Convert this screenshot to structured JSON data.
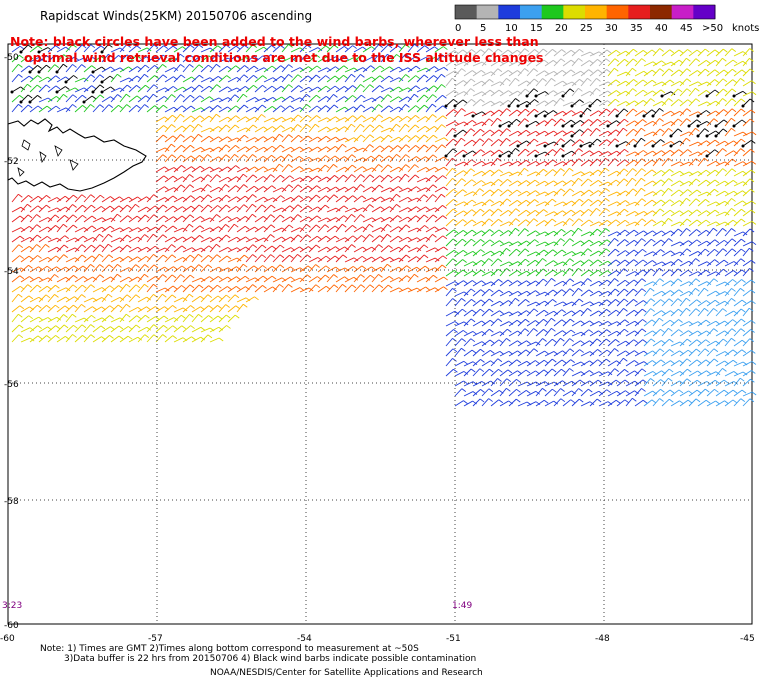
{
  "title": "Rapidscat Winds(25KM) 20150706 ascending",
  "note": {
    "line1": "Note: black circles have been added to the wind barbs, wherever less than",
    "line2": "optimal wind retrieval conditions are met due to the ISS altitude changes",
    "color": "#ee0000"
  },
  "legend": {
    "unit": "knots",
    "labels": [
      "0",
      "5",
      "10",
      "15",
      "20",
      "25",
      "30",
      "35",
      "40",
      "45",
      ">50"
    ],
    "colors": [
      "#5a5a5a",
      "#b4b4b4",
      "#1e3cdc",
      "#3ca0f0",
      "#1ec81e",
      "#dcdc00",
      "#ffb400",
      "#ff6400",
      "#e61e1e",
      "#8c2800",
      "#c81ec8",
      "#6400c8"
    ]
  },
  "lat_labels": [
    "-50",
    "-52",
    "-54",
    "-56",
    "-58",
    "-60"
  ],
  "lon_labels": [
    "-60",
    "-57",
    "-54",
    "-51",
    "-48",
    "-45"
  ],
  "pass_times": [
    "3:23",
    "1:49"
  ],
  "footnotes": {
    "line1": "Note: 1) Times are GMT 2)Times along bottom correspond to measurement at ~50S",
    "line2": "3)Data buffer is 22 hrs from 20150706 4) Black wind barbs indicate possible contamination",
    "credit": "NOAA/NESDIS/Center for Satellite Applications and Research"
  }
}
